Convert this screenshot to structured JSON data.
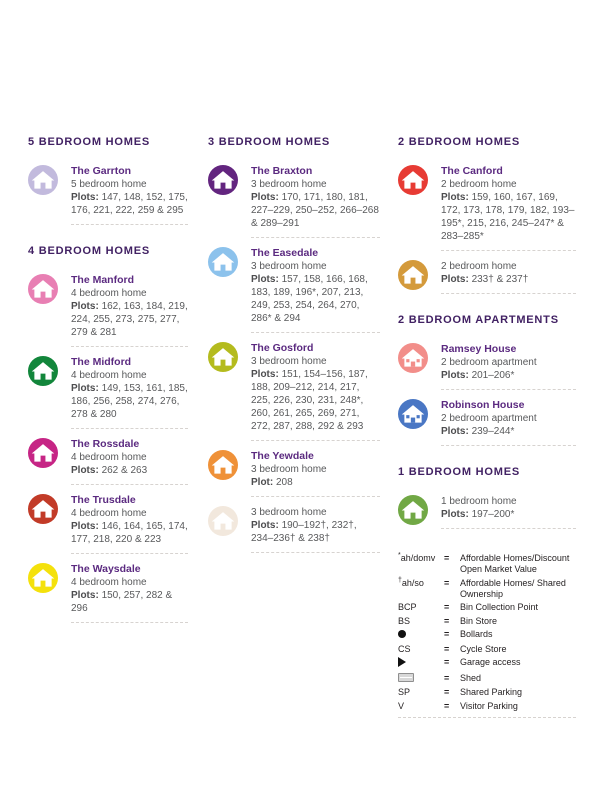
{
  "page_background": "#ffffff",
  "columns": [
    {
      "sections": [
        {
          "heading": "5 BEDROOM HOMES",
          "entries": [
            {
              "icon": "house",
              "color": "#c2badd",
              "name": "The Garrton",
              "desc": "5 bedroom home",
              "plots_label": "Plots:",
              "plots": "147, 148, 152, 175, 176, 221, 222, 259 & 295"
            }
          ]
        },
        {
          "heading": "4 BEDROOM HOMES",
          "entries": [
            {
              "icon": "house",
              "color": "#e87fb3",
              "name": "The Manford",
              "desc": "4 bedroom home",
              "plots_label": "Plots:",
              "plots": "162, 163, 184, 219, 224, 255, 273, 275, 277, 279 & 281"
            },
            {
              "icon": "house",
              "color": "#12863b",
              "name": "The Midford",
              "desc": "4 bedroom home",
              "plots_label": "Plots:",
              "plots": "149, 153, 161, 185, 186, 256, 258, 274, 276, 278 & 280"
            },
            {
              "icon": "house",
              "color": "#c62585",
              "name": "The Rossdale",
              "desc": "4 bedroom home",
              "plots_label": "Plots:",
              "plots": "262 & 263"
            },
            {
              "icon": "house",
              "color": "#c23b28",
              "name": "The Trusdale",
              "desc": "4 bedroom home",
              "plots_label": "Plots:",
              "plots": "146, 164, 165, 174, 177, 218, 220 & 223"
            },
            {
              "icon": "house",
              "color": "#f4e10c",
              "name": "The Waysdale",
              "desc": "4 bedroom home",
              "plots_label": "Plots:",
              "plots": "150, 257, 282 & 296"
            }
          ]
        }
      ]
    },
    {
      "sections": [
        {
          "heading": "3 BEDROOM HOMES",
          "entries": [
            {
              "icon": "house",
              "color": "#63257f",
              "name": "The Braxton",
              "desc": "3 bedroom home",
              "plots_label": "Plots:",
              "plots": "170, 171, 180, 181, 227–229, 250–252, 266–268 & 289–291"
            },
            {
              "icon": "house",
              "color": "#8cc2ec",
              "name": "The Easedale",
              "desc": "3 bedroom home",
              "plots_label": "Plots:",
              "plots": "157, 158, 166, 168, 183, 189, 196*, 207, 213, 249, 253, 254, 264, 270, 286* & 294"
            },
            {
              "icon": "house",
              "color": "#b4bb1e",
              "name": "The Gosford",
              "desc": "3 bedroom home",
              "plots_label": "Plots:",
              "plots": "151, 154–156, 187, 188, 209–212, 214, 217, 225, 226, 230, 231, 248*, 260, 261, 265, 269, 271, 272, 287, 288, 292 & 293"
            },
            {
              "icon": "house",
              "color": "#ef9138",
              "name": "The Yewdale",
              "desc": "3 bedroom home",
              "plots_label": "Plot:",
              "plots": "208"
            },
            {
              "icon": "house",
              "color": "#f2e8dd",
              "name": "",
              "desc": "3 bedroom home",
              "plots_label": "Plots:",
              "plots": "190–192†, 232†, 234–236† & 238†"
            }
          ]
        }
      ]
    },
    {
      "sections": [
        {
          "heading": "2 BEDROOM HOMES",
          "entries": [
            {
              "icon": "house",
              "color": "#e73b34",
              "name": "The Canford",
              "desc": "2 bedroom home",
              "plots_label": "Plots:",
              "plots": "159, 160, 167, 169, 172, 173, 178, 179, 182, 193–195*, 215, 216, 245–247* & 283–285*"
            },
            {
              "icon": "house",
              "color": "#d49a3b",
              "name": "",
              "desc": "2 bedroom home",
              "plots_label": "Plots:",
              "plots": "233† & 237†"
            }
          ]
        },
        {
          "heading": "2 BEDROOM APARTMENTS",
          "entries": [
            {
              "icon": "apartment",
              "color": "#f28e8a",
              "name": "Ramsey House",
              "desc": "2 bedroom apartment",
              "plots_label": "Plots:",
              "plots": "201–206*"
            },
            {
              "icon": "apartment",
              "color": "#4a77c4",
              "name": "Robinson House",
              "desc": "2 bedroom apartment",
              "plots_label": "Plots:",
              "plots": "239–244*"
            }
          ]
        },
        {
          "heading": "1 BEDROOM HOMES",
          "entries": [
            {
              "icon": "house",
              "color": "#71a845",
              "name": "",
              "desc": "1 bedroom home",
              "plots_label": "Plots:",
              "plots": "197–200*"
            }
          ]
        }
      ],
      "key": {
        "equals": "=",
        "items": [
          {
            "sup": "*",
            "sym": "ah/domv",
            "symbol_type": "text",
            "desc": "Affordable Homes/Discount Open Market Value"
          },
          {
            "sup": "†",
            "sym": "ah/so",
            "symbol_type": "text",
            "desc": "Affordable Homes/ Shared Ownership"
          },
          {
            "sup": "",
            "sym": "BCP",
            "symbol_type": "text",
            "desc": "Bin Collection Point"
          },
          {
            "sup": "",
            "sym": "BS",
            "symbol_type": "text",
            "desc": "Bin Store"
          },
          {
            "sup": "",
            "sym": "",
            "symbol_type": "dot",
            "desc": "Bollards"
          },
          {
            "sup": "",
            "sym": "CS",
            "symbol_type": "text",
            "desc": "Cycle Store"
          },
          {
            "sup": "",
            "sym": "",
            "symbol_type": "triangle",
            "desc": "Garage access"
          },
          {
            "sup": "",
            "sym": "",
            "symbol_type": "shed",
            "desc": "Shed"
          },
          {
            "sup": "",
            "sym": "SP",
            "symbol_type": "text",
            "desc": "Shared Parking"
          },
          {
            "sup": "",
            "sym": "V",
            "symbol_type": "text",
            "desc": "Visitor Parking"
          }
        ]
      }
    }
  ]
}
